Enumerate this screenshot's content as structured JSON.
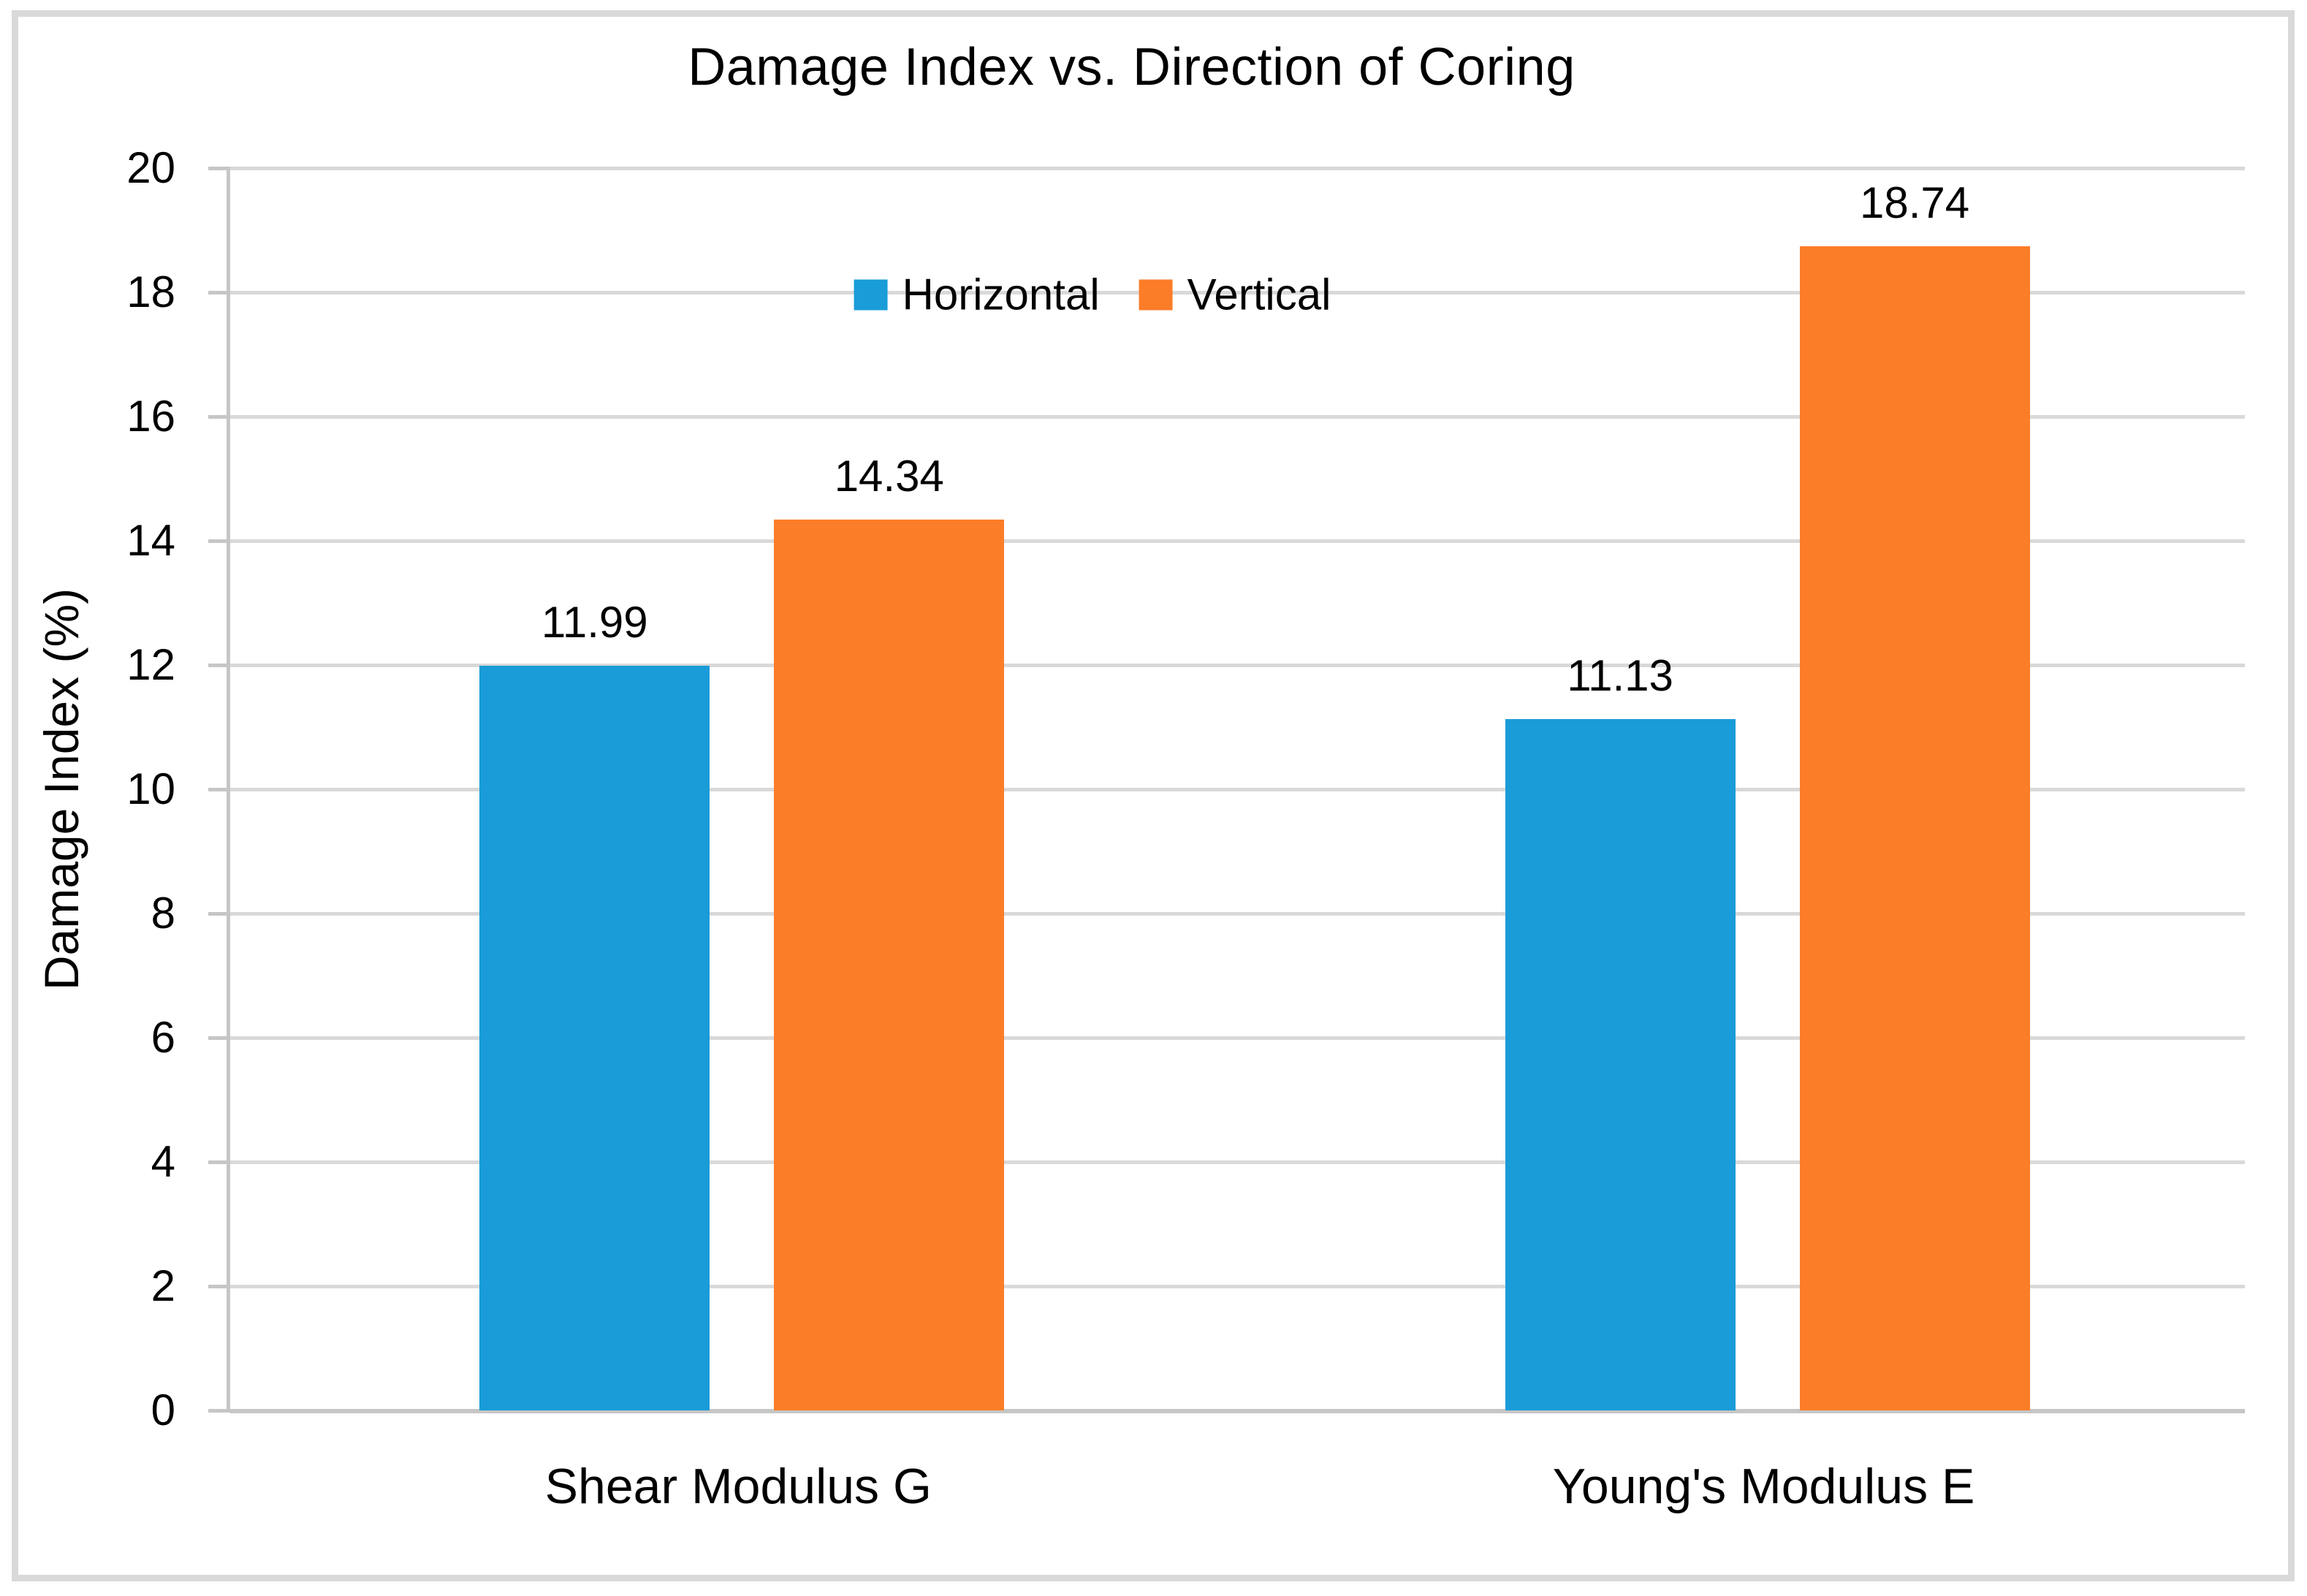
{
  "window": {
    "background": "#ffffff",
    "frame_border_color": "#d9d9d9"
  },
  "chart_data": {
    "type": "bar",
    "title": "Damage Index vs. Direction of Coring",
    "xlabel": "",
    "ylabel": "Damage Index (%)",
    "categories": [
      "Shear Modulus G",
      "Young's Modulus E"
    ],
    "series": [
      {
        "name": "Horizontal",
        "color": "#199cd8",
        "values": [
          11.99,
          11.13
        ],
        "value_labels": [
          "11.99",
          "11.13"
        ]
      },
      {
        "name": "Vertical",
        "color": "#fc7d28",
        "values": [
          14.34,
          18.74
        ],
        "value_labels": [
          "14.34",
          "18.74"
        ]
      }
    ],
    "ylim": [
      0,
      20
    ],
    "ytick_interval": 2,
    "ytick_labels": [
      "0",
      "2",
      "4",
      "6",
      "8",
      "10",
      "12",
      "14",
      "16",
      "18",
      "20"
    ],
    "grid": "horizontal",
    "gridline_color": "#d9d9d9",
    "axis_line_color": "#c6c6c6",
    "text_color": "#000000",
    "legend_position": "inside-top-center",
    "category_center_percents": [
      25.4,
      76.3
    ]
  }
}
